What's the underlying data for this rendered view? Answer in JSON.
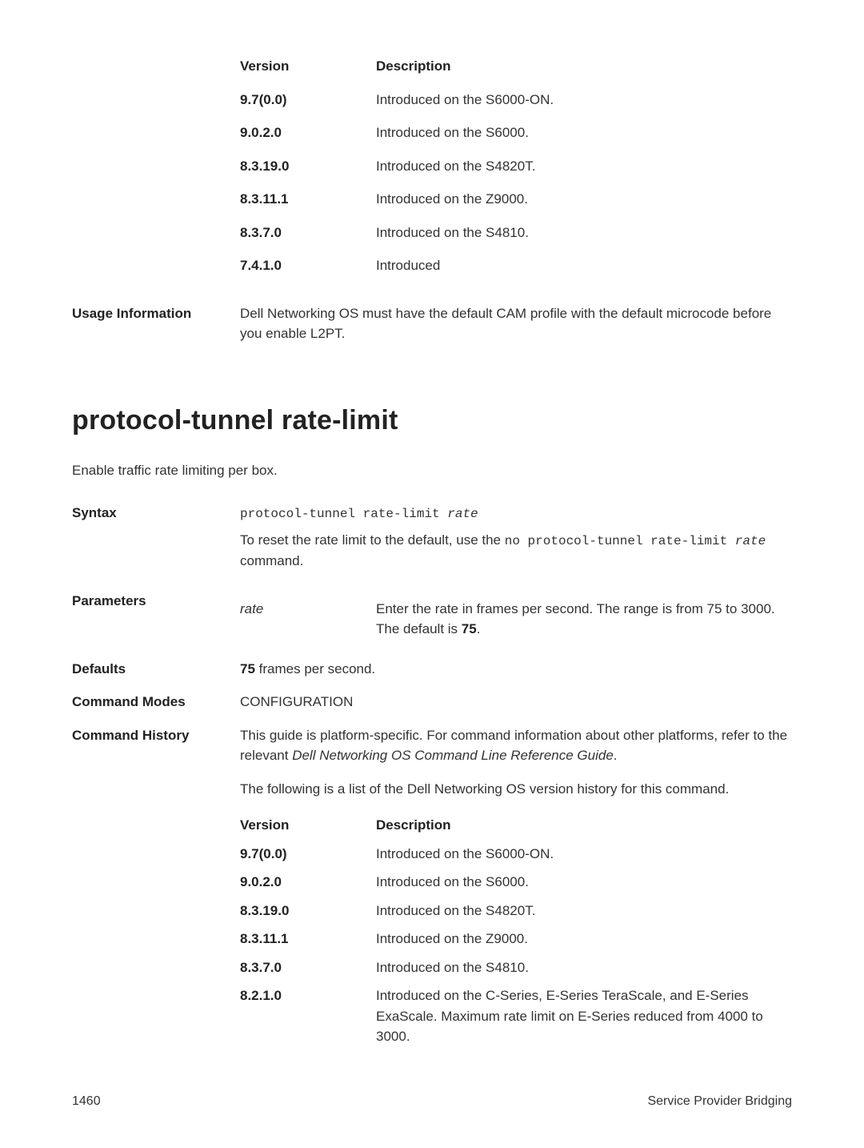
{
  "topTable": {
    "offsetLeft": 210,
    "headers": {
      "version": "Version",
      "description": "Description"
    },
    "rows": [
      {
        "v": "9.7(0.0)",
        "d": "Introduced on the S6000-ON."
      },
      {
        "v": "9.0.2.0",
        "d": "Introduced on the S6000."
      },
      {
        "v": "8.3.19.0",
        "d": "Introduced on the S4820T."
      },
      {
        "v": "8.3.11.1",
        "d": "Introduced on the Z9000."
      },
      {
        "v": "8.3.7.0",
        "d": "Introduced on the S4810."
      },
      {
        "v": "7.4.1.0",
        "d": "Introduced"
      }
    ]
  },
  "usage": {
    "label": "Usage Information",
    "text": "Dell Networking OS must have the default CAM profile with the default microcode before you enable L2PT."
  },
  "command": {
    "title": "protocol-tunnel rate-limit",
    "intro": "Enable traffic rate limiting per box."
  },
  "syntax": {
    "label": "Syntax",
    "code_prefix": "protocol-tunnel rate-limit ",
    "code_arg": "rate",
    "reset_pre": "To reset the rate limit to the default, use the ",
    "reset_code": "no protocol-tunnel rate-limit ",
    "reset_arg": "rate",
    "reset_post": " command."
  },
  "parameters": {
    "label": "Parameters",
    "name": "rate",
    "desc_pre": "Enter the rate in frames per second. The range is from 75 to 3000. The default is ",
    "desc_bold": "75",
    "desc_post": "."
  },
  "defaults": {
    "label": "Defaults",
    "value_bold": "75",
    "value_post": " frames per second."
  },
  "modes": {
    "label": "Command Modes",
    "value": "CONFIGURATION"
  },
  "history": {
    "label": "Command History",
    "para1_pre": "This guide is platform-specific. For command information about other platforms, refer to the relevant ",
    "para1_italic": "Dell Networking OS Command Line Reference Guide",
    "para1_post": ".",
    "para2": "The following is a list of the Dell Networking OS version history for this command.",
    "headers": {
      "version": "Version",
      "description": "Description"
    },
    "rows": [
      {
        "v": "9.7(0.0)",
        "d": "Introduced on the S6000-ON."
      },
      {
        "v": "9.0.2.0",
        "d": "Introduced on the S6000."
      },
      {
        "v": "8.3.19.0",
        "d": "Introduced on the S4820T."
      },
      {
        "v": "8.3.11.1",
        "d": "Introduced on the Z9000."
      },
      {
        "v": "8.3.7.0",
        "d": "Introduced on the S4810."
      },
      {
        "v": "8.2.1.0",
        "d": "Introduced on the C-Series, E-Series TeraScale, and E-Series ExaScale. Maximum rate limit on E-Series reduced from 4000 to 3000."
      }
    ]
  },
  "footer": {
    "page": "1460",
    "section": "Service Provider Bridging"
  }
}
